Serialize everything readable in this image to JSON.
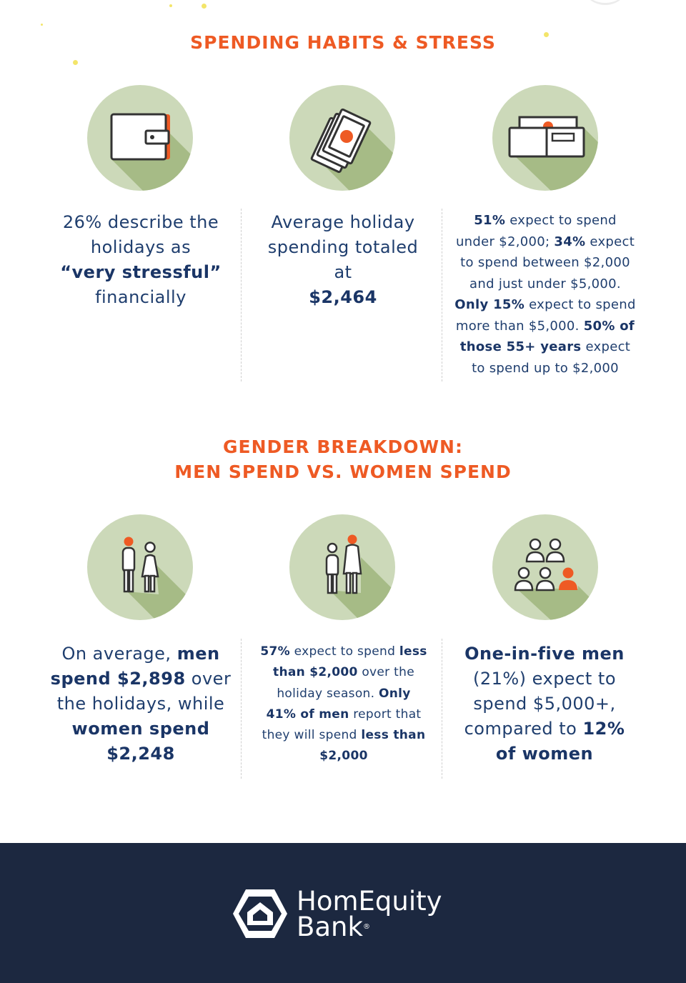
{
  "section1": {
    "title": "SPENDING HABITS & STRESS",
    "col1": {
      "icon": "wallet-icon",
      "pre": "26% describe the holidays as",
      "bold": "“very stressful”",
      "post": "financially"
    },
    "col2": {
      "icon": "money-stack-icon",
      "pre": "Average holiday spending totaled at",
      "bold": "$2,464"
    },
    "col3": {
      "icon": "open-wallet-icon",
      "b1": "51%",
      "t1": " expect to spend under $2,000; ",
      "b2": "34%",
      "t2": " expect to spend between $2,000 and just under $5,000. ",
      "b3": "Only 15%",
      "t3": " expect to spend more than $5,000. ",
      "b4": "50% of those 55+ years",
      "t4": " expect to spend up to $2,000"
    }
  },
  "section2": {
    "title_line1": "GENDER BREAKDOWN:",
    "title_line2": "MEN SPEND VS. WOMEN SPEND",
    "col1": {
      "icon": "man-woman-icon",
      "t1": "On average, ",
      "b1": "men spend $2,898",
      "t2": " over the holidays, while ",
      "b2": "women spend $2,248"
    },
    "col2": {
      "icon": "woman-man-icon",
      "b1": "57%",
      "t1": " expect to spend ",
      "b2": "less than $2,000",
      "t2": " over the holiday season. ",
      "b3": "Only 41% of men",
      "t3": " report that they will spend ",
      "b4": "less than $2,000"
    },
    "col3": {
      "icon": "group-people-icon",
      "b1": "One-in-five men",
      "t1": " (21%) expect to spend $5,000+, compared to ",
      "b2": "12% of women"
    }
  },
  "footer": {
    "logo_line1": "HomEquity",
    "logo_line2": "Bank",
    "registered": "®"
  },
  "colors": {
    "accent": "#ee5a24",
    "navy": "#1f3e6e",
    "circle": "#ccd9b9",
    "shadow": "#a6bb86",
    "footer": "#1c2840"
  }
}
